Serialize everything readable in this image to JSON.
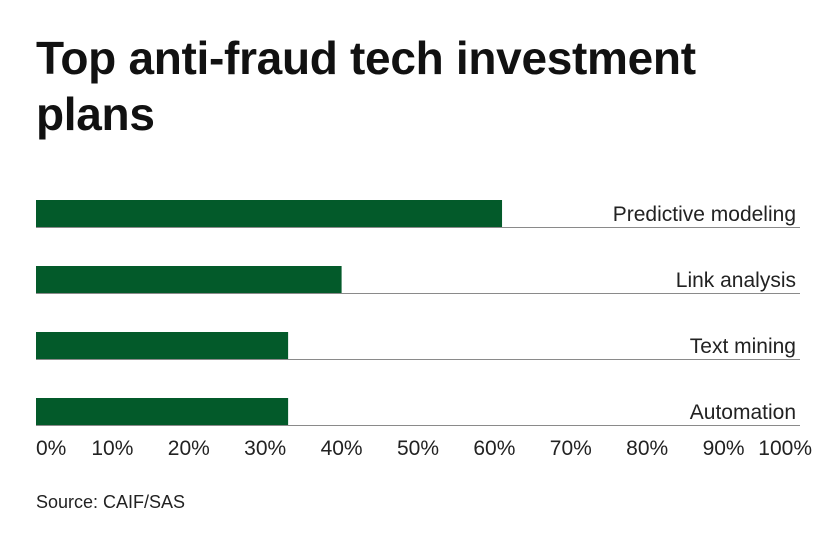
{
  "title": "Top anti-fraud tech investment plans",
  "source": "Source: CAIF/SAS",
  "chart_data": {
    "type": "bar",
    "orientation": "horizontal",
    "categories": [
      "Predictive modeling",
      "Link analysis",
      "Text mining",
      "Automation"
    ],
    "values": [
      61,
      40,
      33,
      33
    ],
    "xlim": [
      0,
      100
    ],
    "unit": "%",
    "ticks": [
      "0%",
      "10%",
      "20%",
      "30%",
      "40%",
      "50%",
      "60%",
      "70%",
      "80%",
      "90%",
      "100%"
    ],
    "bar_color": "#035a2a",
    "grid": false
  }
}
